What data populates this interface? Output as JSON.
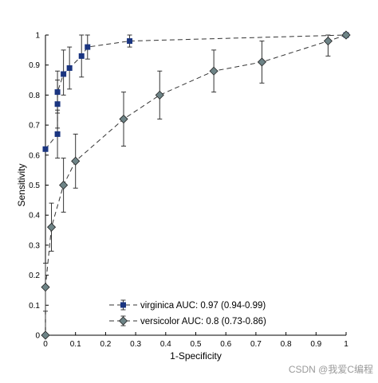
{
  "colors": {
    "virginica": "#1a3580",
    "versicolor": "#6e8487",
    "line": "#333333",
    "errorbar": "#333333",
    "axis": "#000000"
  },
  "watermark": "CSDN @我爱C编程",
  "chart_data": {
    "type": "line",
    "xlabel": "1-Specificity",
    "ylabel": "Sensitivity",
    "xlim": [
      0,
      1
    ],
    "ylim": [
      0,
      1
    ],
    "xticks": [
      "0",
      "0.1",
      "0.2",
      "0.3",
      "0.4",
      "0.5",
      "0.6",
      "0.7",
      "0.8",
      "0.9",
      "1"
    ],
    "yticks": [
      "0",
      "0.1",
      "0.2",
      "0.3",
      "0.4",
      "0.5",
      "0.6",
      "0.7",
      "0.8",
      "0.9",
      "1"
    ],
    "grid": false,
    "legend_position": "bottom-right",
    "series": [
      {
        "name": "virginica AUC: 0.97 (0.94-0.99)",
        "marker": "square",
        "x": [
          0.0,
          0.04,
          0.04,
          0.04,
          0.06,
          0.08,
          0.12,
          0.14,
          0.28,
          1.0
        ],
        "y": [
          0.62,
          0.67,
          0.77,
          0.81,
          0.87,
          0.89,
          0.93,
          0.96,
          0.98,
          1.0
        ],
        "yerr_low": [
          0.62,
          0.59,
          0.69,
          0.74,
          0.8,
          0.82,
          0.86,
          0.92,
          0.96,
          1.0
        ],
        "yerr_high": [
          0.62,
          0.75,
          0.85,
          0.88,
          0.95,
          0.96,
          1.0,
          1.0,
          1.0,
          1.0
        ]
      },
      {
        "name": "versicolor AUC: 0.8 (0.73-0.86)",
        "marker": "diamond",
        "x": [
          0.0,
          0.0,
          0.02,
          0.06,
          0.1,
          0.26,
          0.38,
          0.56,
          0.72,
          0.94,
          1.0
        ],
        "y": [
          0.0,
          0.16,
          0.36,
          0.5,
          0.58,
          0.72,
          0.8,
          0.88,
          0.91,
          0.98,
          1.0
        ],
        "yerr_low": [
          0.0,
          0.08,
          0.28,
          0.41,
          0.49,
          0.63,
          0.72,
          0.81,
          0.84,
          0.93,
          1.0
        ],
        "yerr_high": [
          0.0,
          0.24,
          0.44,
          0.59,
          0.67,
          0.81,
          0.88,
          0.95,
          0.98,
          1.0,
          1.0
        ]
      }
    ]
  }
}
